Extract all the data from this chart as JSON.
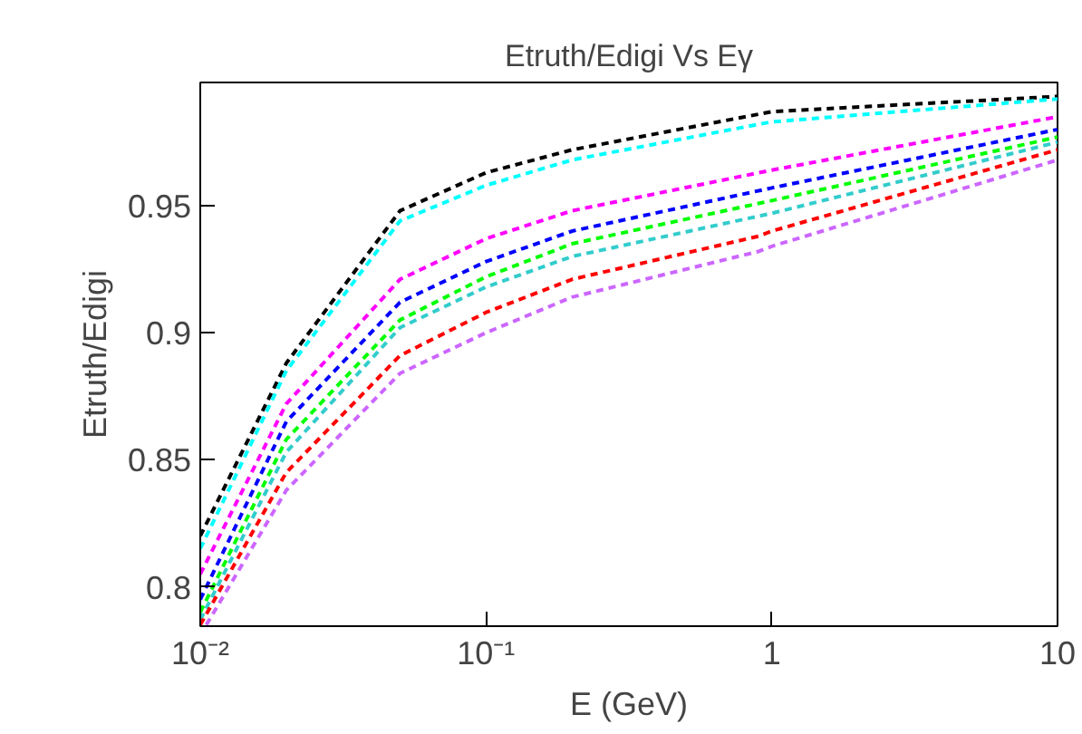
{
  "chart_data": {
    "type": "line",
    "title": "Etruth/Edigi Vs Eγ",
    "xlabel": "E (GeV)",
    "ylabel": "Etruth/Edigi",
    "log": "x",
    "grid": false,
    "line_style": "dashed",
    "xlim": [
      0.01,
      10
    ],
    "xticks": [
      {
        "value": 0.01,
        "label": "10⁻²"
      },
      {
        "value": 0.1,
        "label": "10⁻¹"
      },
      1,
      10
    ],
    "ylim": [
      0.7845,
      0.9985
    ],
    "yticks": [
      0.8,
      0.85,
      0.9,
      0.95
    ],
    "x": [
      0.01,
      0.02,
      0.05,
      0.1,
      0.2,
      1,
      10
    ],
    "series": [
      {
        "color": "#000000",
        "values": [
          0.82,
          0.888,
          0.948,
          0.963,
          0.972,
          0.987,
          0.993
        ]
      },
      {
        "color": "#00ffff",
        "values": [
          0.815,
          0.885,
          0.944,
          0.958,
          0.968,
          0.983,
          0.992
        ]
      },
      {
        "color": "#ff00ff",
        "values": [
          0.805,
          0.872,
          0.921,
          0.937,
          0.948,
          0.964,
          0.985
        ]
      },
      {
        "color": "#0000ff",
        "values": [
          0.795,
          0.865,
          0.912,
          0.928,
          0.94,
          0.957,
          0.98
        ]
      },
      {
        "color": "#00ff00",
        "values": [
          0.79,
          0.858,
          0.905,
          0.922,
          0.935,
          0.952,
          0.977
        ]
      },
      {
        "color": "#33cccc",
        "values": [
          0.787,
          0.853,
          0.902,
          0.918,
          0.93,
          0.947,
          0.975
        ]
      },
      {
        "color": "#ff0000",
        "x": [
          0.01,
          0.02,
          0.05,
          0.1,
          0.2,
          0.9,
          1,
          10
        ],
        "values": [
          0.785,
          0.845,
          0.891,
          0.908,
          0.921,
          0.938,
          0.94,
          0.972
        ]
      },
      {
        "color": "#cc66ff",
        "x": [
          0.0105,
          0.02,
          0.05,
          0.1,
          0.2,
          0.9,
          1,
          10
        ],
        "values": [
          0.785,
          0.838,
          0.884,
          0.9,
          0.914,
          0.932,
          0.934,
          0.968
        ]
      }
    ]
  }
}
